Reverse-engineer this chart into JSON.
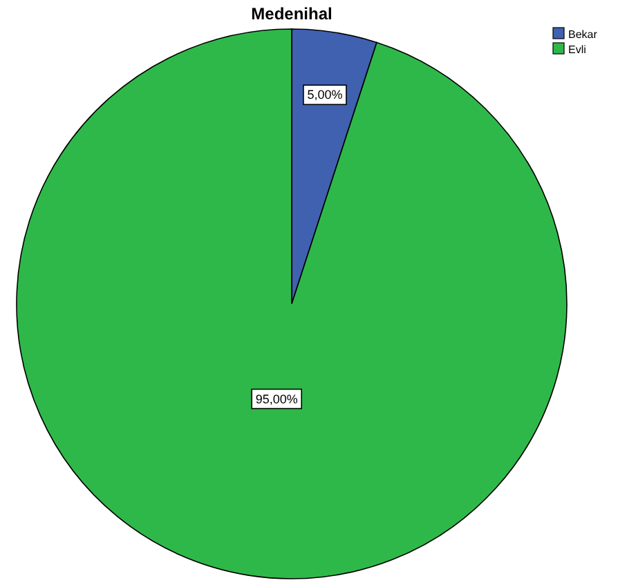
{
  "chart_data": {
    "type": "pie",
    "title": "Medenihal",
    "categories": [
      "Bekar",
      "Evli"
    ],
    "values": [
      5,
      95
    ],
    "colors": [
      "#4060b0",
      "#2fb84a"
    ],
    "value_labels": [
      "5,00%",
      "95,00%"
    ],
    "legend": "top right"
  }
}
